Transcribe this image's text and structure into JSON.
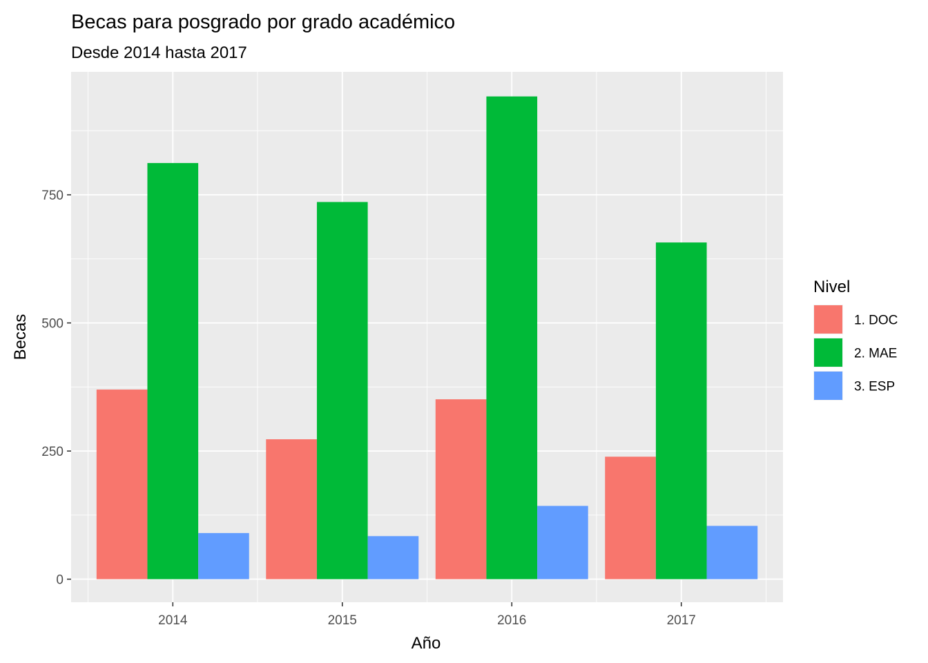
{
  "chart_data": {
    "type": "bar",
    "title": "Becas para posgrado por grado académico",
    "subtitle": "Desde 2014 hasta 2017",
    "xlabel": "Año",
    "ylabel": "Becas",
    "categories": [
      "2014",
      "2015",
      "2016",
      "2017"
    ],
    "series": [
      {
        "name": "1. DOC",
        "values": [
          370,
          273,
          351,
          239
        ],
        "color": "#F8766D"
      },
      {
        "name": "2. MAE",
        "values": [
          812,
          736,
          942,
          657
        ],
        "color": "#00BA38"
      },
      {
        "name": "3. ESP",
        "values": [
          90,
          84,
          143,
          104
        ],
        "color": "#619CFF"
      }
    ],
    "ylim": [
      -45,
      990
    ],
    "yticks": [
      0,
      250,
      500,
      750
    ],
    "grid": true,
    "legend": {
      "title": "Nivel",
      "position": "right"
    }
  }
}
